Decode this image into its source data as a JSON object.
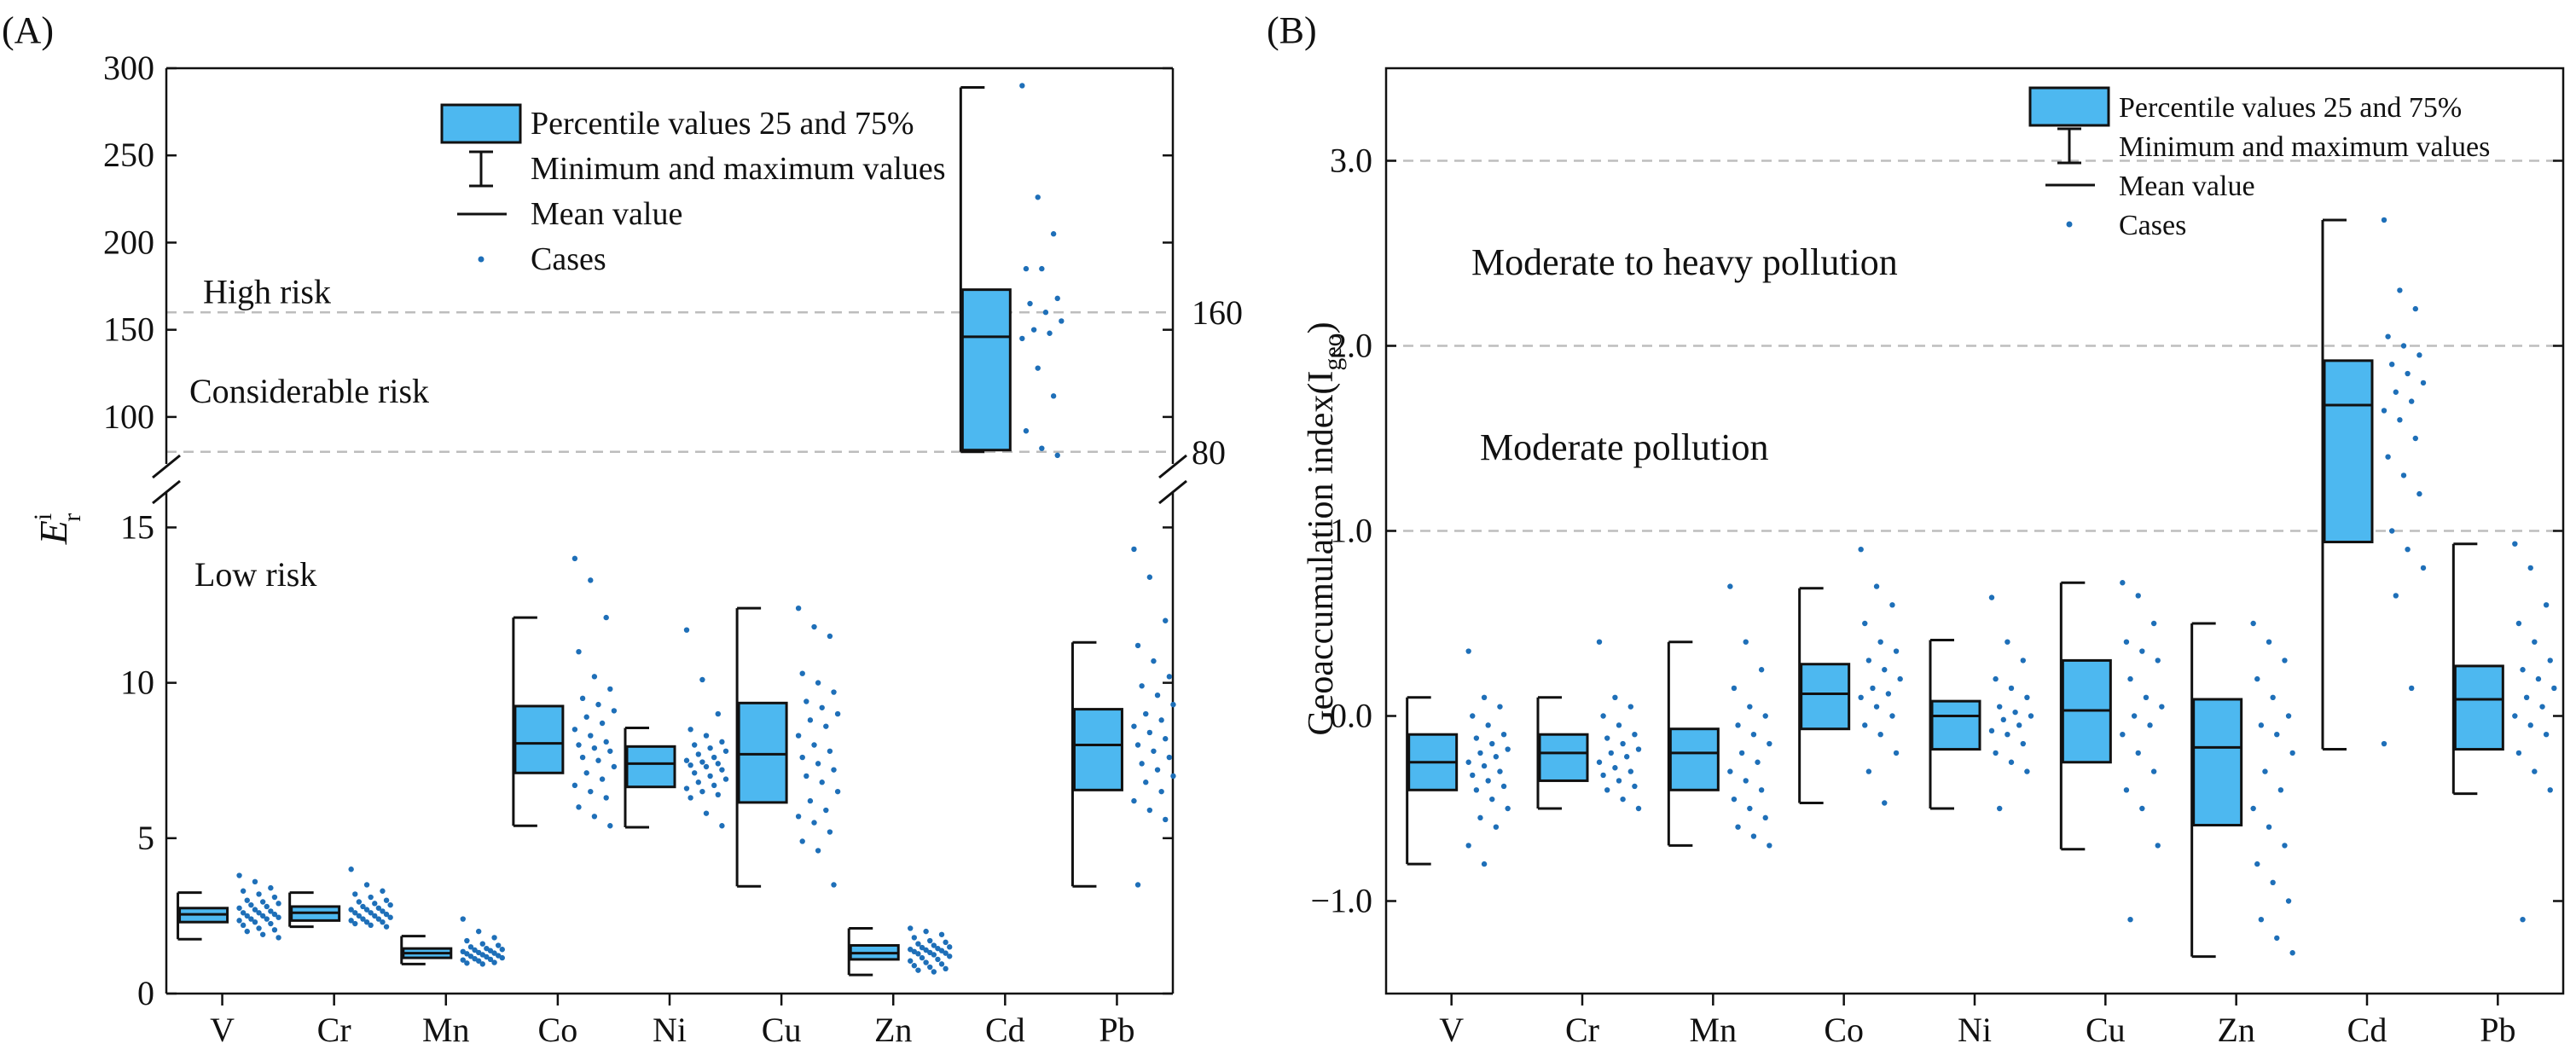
{
  "chart_data": [
    {
      "type": "box",
      "panel_label": "(A)",
      "ylabel_main": "E",
      "ylabel_sup": "i",
      "ylabel_sub": "r",
      "categories": [
        "V",
        "Cr",
        "Mn",
        "Co",
        "Ni",
        "Cu",
        "Zn",
        "Cd",
        "Pb"
      ],
      "y_axis_broken": true,
      "lower_ylim": [
        0,
        16
      ],
      "upper_ylim": [
        75,
        300
      ],
      "lower_ticks": [
        "0",
        "5",
        "10",
        "15"
      ],
      "upper_ticks": [
        "100",
        "150",
        "200",
        "250",
        "300"
      ],
      "reference_lines": [
        {
          "value": 160,
          "label": "160"
        },
        {
          "value": 80,
          "label": "80"
        }
      ],
      "zone_labels": [
        {
          "text": "High risk",
          "y": 172
        },
        {
          "text": "Considerable risk",
          "y": 115
        },
        {
          "text": "Low risk",
          "y": 13.5
        }
      ],
      "legend": {
        "box": "Percentile values 25 and 75%",
        "whisker": "Minimum and maximum values",
        "mean": "Mean value",
        "cases": "Cases"
      },
      "series": [
        {
          "name": "V",
          "min": 1.75,
          "q1": 2.3,
          "mean": 2.55,
          "q3": 2.75,
          "max": 3.25,
          "cases": [
            3.8,
            3.6,
            3.4,
            3.3,
            3.2,
            3.1,
            3.0,
            2.95,
            2.9,
            2.85,
            2.8,
            2.75,
            2.7,
            2.65,
            2.6,
            2.6,
            2.55,
            2.5,
            2.5,
            2.45,
            2.4,
            2.4,
            2.35,
            2.3,
            2.25,
            2.2,
            2.1,
            2.05,
            2.0,
            1.9,
            1.8
          ]
        },
        {
          "name": "Cr",
          "min": 2.15,
          "q1": 2.35,
          "mean": 2.6,
          "q3": 2.8,
          "max": 3.25,
          "cases": [
            4.0,
            3.5,
            3.3,
            3.2,
            3.1,
            3.0,
            2.95,
            2.9,
            2.85,
            2.8,
            2.75,
            2.7,
            2.7,
            2.65,
            2.6,
            2.6,
            2.55,
            2.5,
            2.5,
            2.45,
            2.4,
            2.4,
            2.35,
            2.3,
            2.3,
            2.25,
            2.2,
            2.15
          ]
        },
        {
          "name": "Mn",
          "min": 0.95,
          "q1": 1.15,
          "mean": 1.3,
          "q3": 1.45,
          "max": 1.85,
          "cases": [
            2.4,
            2.0,
            1.8,
            1.7,
            1.6,
            1.55,
            1.5,
            1.45,
            1.42,
            1.4,
            1.38,
            1.35,
            1.32,
            1.3,
            1.28,
            1.25,
            1.22,
            1.2,
            1.18,
            1.15,
            1.12,
            1.1,
            1.08,
            1.05,
            1.0,
            0.98,
            0.95
          ]
        },
        {
          "name": "Co",
          "min": 5.4,
          "q1": 7.1,
          "mean": 8.05,
          "q3": 9.25,
          "max": 12.1,
          "cases": [
            14.0,
            13.3,
            12.1,
            11.0,
            10.2,
            9.8,
            9.5,
            9.3,
            9.1,
            8.9,
            8.7,
            8.5,
            8.3,
            8.1,
            8.0,
            7.9,
            7.8,
            7.6,
            7.5,
            7.3,
            7.1,
            6.9,
            6.7,
            6.5,
            6.3,
            6.0,
            5.7,
            5.4
          ]
        },
        {
          "name": "Ni",
          "min": 5.35,
          "q1": 6.65,
          "mean": 7.4,
          "q3": 7.95,
          "max": 8.55,
          "cases": [
            11.7,
            10.1,
            9.0,
            8.5,
            8.3,
            8.1,
            8.0,
            7.9,
            7.8,
            7.7,
            7.6,
            7.5,
            7.45,
            7.4,
            7.35,
            7.3,
            7.2,
            7.1,
            7.0,
            6.9,
            6.8,
            6.7,
            6.6,
            6.5,
            6.4,
            6.3,
            5.8,
            5.4
          ]
        },
        {
          "name": "Cu",
          "min": 3.45,
          "q1": 6.15,
          "mean": 7.7,
          "q3": 9.35,
          "max": 12.4,
          "cases": [
            12.4,
            11.8,
            11.5,
            10.3,
            10.0,
            9.7,
            9.4,
            9.2,
            9.0,
            8.8,
            8.6,
            8.3,
            8.0,
            7.8,
            7.6,
            7.4,
            7.2,
            7.0,
            6.8,
            6.5,
            6.2,
            5.9,
            5.7,
            5.5,
            5.2,
            4.9,
            4.6,
            3.5
          ]
        },
        {
          "name": "Zn",
          "min": 0.6,
          "q1": 1.1,
          "mean": 1.3,
          "q3": 1.55,
          "max": 2.1,
          "cases": [
            2.1,
            2.0,
            1.9,
            1.8,
            1.7,
            1.65,
            1.6,
            1.55,
            1.5,
            1.48,
            1.45,
            1.42,
            1.4,
            1.38,
            1.35,
            1.32,
            1.3,
            1.28,
            1.25,
            1.2,
            1.15,
            1.1,
            1.05,
            1.0,
            0.95,
            0.9,
            0.85,
            0.8,
            0.75,
            0.7
          ]
        },
        {
          "name": "Cd",
          "min": 80,
          "q1": 81,
          "mean": 146,
          "q3": 173,
          "max": 289,
          "cases": [
            290,
            226,
            205,
            185,
            185,
            168,
            165,
            160,
            155,
            150,
            148,
            145,
            128,
            112,
            92,
            82,
            78
          ]
        },
        {
          "name": "Pb",
          "min": 3.45,
          "q1": 6.55,
          "mean": 8.0,
          "q3": 9.15,
          "max": 11.3,
          "cases": [
            14.3,
            13.4,
            12.0,
            11.2,
            10.7,
            10.2,
            9.9,
            9.6,
            9.3,
            9.0,
            8.8,
            8.6,
            8.4,
            8.2,
            8.0,
            7.8,
            7.6,
            7.4,
            7.2,
            7.0,
            6.8,
            6.5,
            6.2,
            5.9,
            5.6,
            3.5
          ]
        }
      ]
    },
    {
      "type": "box",
      "panel_label": "(B)",
      "ylabel_main": "Geoaccumulation index(I",
      "ylabel_sub": "geo",
      "ylabel_close": ")",
      "categories": [
        "V",
        "Cr",
        "Mn",
        "Co",
        "Ni",
        "Cu",
        "Zn",
        "Cd",
        "Pb"
      ],
      "ylim": [
        -1.5,
        3.5
      ],
      "ticks": [
        {
          "value": 3,
          "label": "3.0"
        },
        {
          "value": 2,
          "label": "2.0"
        },
        {
          "value": 1,
          "label": "1.0"
        },
        {
          "value": 0,
          "label": "0.0"
        },
        {
          "value": -1,
          "label": "−1.0"
        }
      ],
      "reference_lines": [
        3,
        2,
        1
      ],
      "zone_labels": [
        {
          "text": "Moderate to heavy pollution",
          "y": 2.45
        },
        {
          "text": "Moderate pollution",
          "y": 1.45
        }
      ],
      "legend": {
        "box": "Percentile values 25 and 75%",
        "whisker": "Minimum and maximum values",
        "mean": "Mean value",
        "cases": "Cases"
      },
      "series": [
        {
          "name": "V",
          "min": -0.8,
          "q1": -0.4,
          "mean": -0.25,
          "q3": -0.1,
          "max": 0.1,
          "cases": [
            0.35,
            0.1,
            0.05,
            0.0,
            -0.05,
            -0.1,
            -0.12,
            -0.15,
            -0.18,
            -0.2,
            -0.22,
            -0.25,
            -0.27,
            -0.3,
            -0.32,
            -0.35,
            -0.38,
            -0.4,
            -0.45,
            -0.5,
            -0.55,
            -0.6,
            -0.7,
            -0.8
          ]
        },
        {
          "name": "Cr",
          "min": -0.5,
          "q1": -0.35,
          "mean": -0.2,
          "q3": -0.1,
          "max": 0.1,
          "cases": [
            0.4,
            0.1,
            0.05,
            0.0,
            -0.05,
            -0.1,
            -0.12,
            -0.15,
            -0.18,
            -0.2,
            -0.22,
            -0.25,
            -0.28,
            -0.3,
            -0.32,
            -0.35,
            -0.38,
            -0.4,
            -0.45,
            -0.5
          ]
        },
        {
          "name": "Mn",
          "min": -0.7,
          "q1": -0.4,
          "mean": -0.2,
          "q3": -0.07,
          "max": 0.4,
          "cases": [
            0.7,
            0.4,
            0.25,
            0.15,
            0.05,
            0.0,
            -0.05,
            -0.1,
            -0.15,
            -0.2,
            -0.25,
            -0.3,
            -0.35,
            -0.4,
            -0.45,
            -0.5,
            -0.55,
            -0.6,
            -0.65,
            -0.7
          ]
        },
        {
          "name": "Co",
          "min": -0.47,
          "q1": -0.07,
          "mean": 0.12,
          "q3": 0.28,
          "max": 0.69,
          "cases": [
            0.9,
            0.7,
            0.6,
            0.5,
            0.4,
            0.35,
            0.3,
            0.25,
            0.2,
            0.15,
            0.12,
            0.1,
            0.05,
            0.0,
            -0.05,
            -0.1,
            -0.2,
            -0.3,
            -0.47
          ]
        },
        {
          "name": "Ni",
          "min": -0.5,
          "q1": -0.18,
          "mean": 0.0,
          "q3": 0.08,
          "max": 0.41,
          "cases": [
            0.64,
            0.4,
            0.3,
            0.2,
            0.15,
            0.1,
            0.05,
            0.02,
            0.0,
            -0.02,
            -0.05,
            -0.08,
            -0.1,
            -0.15,
            -0.2,
            -0.25,
            -0.3,
            -0.5
          ]
        },
        {
          "name": "Cu",
          "min": -0.72,
          "q1": -0.25,
          "mean": 0.03,
          "q3": 0.3,
          "max": 0.72,
          "cases": [
            0.72,
            0.65,
            0.5,
            0.4,
            0.35,
            0.3,
            0.2,
            0.1,
            0.05,
            0.0,
            -0.05,
            -0.1,
            -0.2,
            -0.3,
            -0.4,
            -0.5,
            -0.7,
            -1.1
          ]
        },
        {
          "name": "Zn",
          "min": -1.3,
          "q1": -0.59,
          "mean": -0.17,
          "q3": 0.09,
          "max": 0.5,
          "cases": [
            0.5,
            0.4,
            0.3,
            0.2,
            0.1,
            0.0,
            -0.05,
            -0.1,
            -0.2,
            -0.3,
            -0.4,
            -0.5,
            -0.6,
            -0.7,
            -0.8,
            -0.9,
            -1.0,
            -1.1,
            -1.2,
            -1.28
          ]
        },
        {
          "name": "Cd",
          "min": -0.18,
          "q1": 0.94,
          "mean": 1.68,
          "q3": 1.92,
          "max": 2.68,
          "cases": [
            2.68,
            2.3,
            2.2,
            2.05,
            2.0,
            1.95,
            1.9,
            1.85,
            1.8,
            1.75,
            1.7,
            1.65,
            1.6,
            1.5,
            1.4,
            1.3,
            1.2,
            1.0,
            0.9,
            0.8,
            0.65,
            0.15,
            -0.15
          ]
        },
        {
          "name": "Pb",
          "min": -0.42,
          "q1": -0.18,
          "mean": 0.09,
          "q3": 0.27,
          "max": 0.93,
          "cases": [
            0.93,
            0.8,
            0.6,
            0.5,
            0.4,
            0.3,
            0.25,
            0.2,
            0.15,
            0.1,
            0.05,
            0.0,
            -0.05,
            -0.1,
            -0.2,
            -0.3,
            -0.4,
            -1.1
          ]
        }
      ]
    }
  ]
}
